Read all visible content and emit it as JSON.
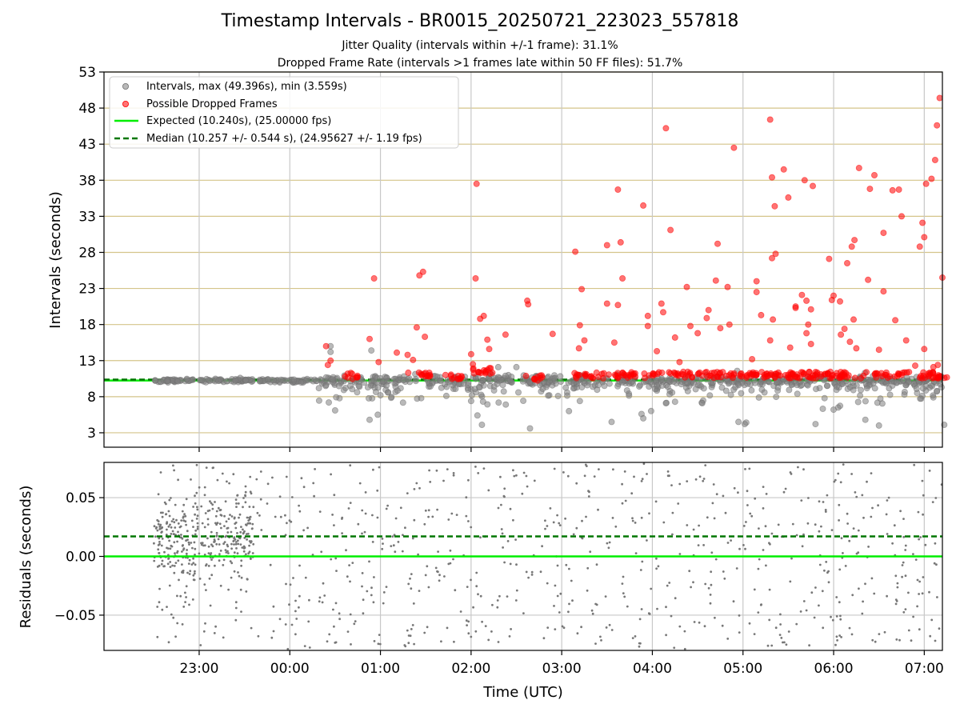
{
  "header": {
    "title": "Timestamp Intervals - BR0015_20250721_223023_557818",
    "subtitle1": "Jitter Quality (intervals within +/-1 frame): 31.1%",
    "subtitle2": "Dropped Frame Rate (intervals >1 frames late within 50 FF files): 51.7%"
  },
  "colors": {
    "interval_points": "#808080",
    "dropped_points": "#ff0000",
    "expected_line": "#00ee00",
    "median_line": "#007700",
    "hgrid": "#d4c48a",
    "vgrid": "#c8c8c8"
  },
  "chart_data": [
    {
      "type": "scatter",
      "title": "",
      "ylabel": "Intervals (seconds)",
      "xlabel": "",
      "x_unit": "hours since 23:00 UTC",
      "xlim": [
        -1.05,
        8.2
      ],
      "ylim": [
        1,
        53
      ],
      "yticks": [
        3,
        8,
        13,
        18,
        23,
        28,
        33,
        38,
        43,
        48,
        53
      ],
      "xticks": [
        0,
        1,
        2,
        3,
        4,
        5,
        6,
        7,
        8
      ],
      "xtick_labels": [
        "23:00",
        "00:00",
        "01:00",
        "02:00",
        "03:00",
        "04:00",
        "05:00",
        "06:00",
        "07:00"
      ],
      "grid": "both",
      "legend_position": "upper-left",
      "legend": [
        "Intervals, max (49.396s), min (3.559s)",
        "Possible Dropped Frames",
        "Expected (10.240s), (25.00000 fps)",
        "Median (10.257 +/- 0.544 s), (24.95627 +/- 1.19 fps)"
      ],
      "expected_value": 10.24,
      "median_value": 10.257,
      "intervals_baseline": 10.24,
      "series": [
        {
          "name": "Intervals, max (49.396s), min (3.559s)",
          "x_range": [
            -0.5,
            8.3
          ],
          "typical_value": 10.24,
          "outliers": [
            {
              "x": 1.45,
              "y": 15.0
            },
            {
              "x": 1.45,
              "y": 14.2
            },
            {
              "x": 1.5,
              "y": 6.1
            },
            {
              "x": 1.43,
              "y": 7.2
            },
            {
              "x": 1.9,
              "y": 14.4
            },
            {
              "x": 1.88,
              "y": 4.8
            },
            {
              "x": 1.97,
              "y": 5.5
            },
            {
              "x": 2.0,
              "y": 8.2
            },
            {
              "x": 2.45,
              "y": 7.8
            },
            {
              "x": 3.0,
              "y": 7.4
            },
            {
              "x": 3.12,
              "y": 4.1
            },
            {
              "x": 3.07,
              "y": 5.4
            },
            {
              "x": 3.3,
              "y": 12.1
            },
            {
              "x": 3.5,
              "y": 12.1
            },
            {
              "x": 3.65,
              "y": 3.6
            },
            {
              "x": 4.08,
              "y": 6.0
            },
            {
              "x": 4.2,
              "y": 7.4
            },
            {
              "x": 4.55,
              "y": 4.5
            },
            {
              "x": 4.88,
              "y": 5.6
            },
            {
              "x": 4.9,
              "y": 5.0
            },
            {
              "x": 5.15,
              "y": 7.1
            },
            {
              "x": 5.25,
              "y": 7.3
            },
            {
              "x": 5.55,
              "y": 7.1
            },
            {
              "x": 5.95,
              "y": 4.5
            },
            {
              "x": 6.02,
              "y": 4.2
            },
            {
              "x": 6.6,
              "y": 8.4
            },
            {
              "x": 6.8,
              "y": 4.2
            },
            {
              "x": 6.9,
              "y": 7.8
            },
            {
              "x": 7.0,
              "y": 6.2
            },
            {
              "x": 7.05,
              "y": 6.5
            },
            {
              "x": 7.35,
              "y": 4.8
            },
            {
              "x": 7.5,
              "y": 4.0
            },
            {
              "x": 8.1,
              "y": 7.9
            },
            {
              "x": 8.22,
              "y": 4.1
            }
          ]
        },
        {
          "name": "Possible Dropped Frames",
          "clusters": [
            {
              "x_start": 1.6,
              "x_end": 1.75,
              "y": 10.9,
              "count": 10
            },
            {
              "x_start": 2.3,
              "x_end": 2.55,
              "y": 11.0,
              "count": 14
            },
            {
              "x_start": 2.7,
              "x_end": 2.9,
              "y": 10.8,
              "count": 12
            },
            {
              "x_start": 3.0,
              "x_end": 3.25,
              "y": 11.6,
              "count": 16
            },
            {
              "x_start": 3.6,
              "x_end": 3.8,
              "y": 10.6,
              "count": 10
            },
            {
              "x_start": 4.12,
              "x_end": 4.7,
              "y": 10.9,
              "count": 30
            },
            {
              "x_start": 4.68,
              "x_end": 8.25,
              "y": 11.0,
              "count": 210
            }
          ],
          "points": [
            {
              "x": 1.4,
              "y": 15.0
            },
            {
              "x": 1.42,
              "y": 12.4
            },
            {
              "x": 1.45,
              "y": 13.0
            },
            {
              "x": 1.88,
              "y": 16.0
            },
            {
              "x": 1.93,
              "y": 24.4
            },
            {
              "x": 1.98,
              "y": 12.8
            },
            {
              "x": 2.18,
              "y": 14.1
            },
            {
              "x": 2.3,
              "y": 13.8
            },
            {
              "x": 2.4,
              "y": 17.6
            },
            {
              "x": 2.43,
              "y": 24.8
            },
            {
              "x": 2.47,
              "y": 25.3
            },
            {
              "x": 2.49,
              "y": 16.3
            },
            {
              "x": 2.36,
              "y": 13.1
            },
            {
              "x": 3.0,
              "y": 13.9
            },
            {
              "x": 3.02,
              "y": 12.5
            },
            {
              "x": 3.06,
              "y": 37.5
            },
            {
              "x": 3.05,
              "y": 24.4
            },
            {
              "x": 3.1,
              "y": 18.8
            },
            {
              "x": 3.14,
              "y": 19.2
            },
            {
              "x": 3.18,
              "y": 15.9
            },
            {
              "x": 3.2,
              "y": 14.6
            },
            {
              "x": 3.38,
              "y": 16.6
            },
            {
              "x": 3.62,
              "y": 21.3
            },
            {
              "x": 3.63,
              "y": 20.8
            },
            {
              "x": 3.9,
              "y": 16.7
            },
            {
              "x": 4.15,
              "y": 28.1
            },
            {
              "x": 4.22,
              "y": 22.9
            },
            {
              "x": 4.25,
              "y": 15.8
            },
            {
              "x": 4.19,
              "y": 14.7
            },
            {
              "x": 4.2,
              "y": 17.9
            },
            {
              "x": 4.5,
              "y": 29.0
            },
            {
              "x": 4.5,
              "y": 20.9
            },
            {
              "x": 4.62,
              "y": 36.7
            },
            {
              "x": 4.65,
              "y": 29.4
            },
            {
              "x": 4.67,
              "y": 24.4
            },
            {
              "x": 4.62,
              "y": 20.7
            },
            {
              "x": 4.58,
              "y": 15.5
            },
            {
              "x": 4.9,
              "y": 34.5
            },
            {
              "x": 4.95,
              "y": 19.2
            },
            {
              "x": 4.95,
              "y": 17.8
            },
            {
              "x": 5.05,
              "y": 14.3
            },
            {
              "x": 5.1,
              "y": 20.9
            },
            {
              "x": 5.12,
              "y": 19.7
            },
            {
              "x": 5.15,
              "y": 45.2
            },
            {
              "x": 5.2,
              "y": 31.1
            },
            {
              "x": 5.25,
              "y": 16.2
            },
            {
              "x": 5.3,
              "y": 12.8
            },
            {
              "x": 5.38,
              "y": 23.2
            },
            {
              "x": 5.42,
              "y": 17.8
            },
            {
              "x": 5.5,
              "y": 16.8
            },
            {
              "x": 5.6,
              "y": 18.9
            },
            {
              "x": 5.62,
              "y": 20.0
            },
            {
              "x": 5.7,
              "y": 24.1
            },
            {
              "x": 5.72,
              "y": 29.2
            },
            {
              "x": 5.75,
              "y": 17.5
            },
            {
              "x": 5.83,
              "y": 23.2
            },
            {
              "x": 5.9,
              "y": 42.5
            },
            {
              "x": 5.85,
              "y": 18.0
            },
            {
              "x": 6.1,
              "y": 13.2
            },
            {
              "x": 6.15,
              "y": 24.0
            },
            {
              "x": 6.15,
              "y": 22.5
            },
            {
              "x": 6.2,
              "y": 19.3
            },
            {
              "x": 6.3,
              "y": 46.4
            },
            {
              "x": 6.32,
              "y": 38.4
            },
            {
              "x": 6.35,
              "y": 34.4
            },
            {
              "x": 6.32,
              "y": 27.2
            },
            {
              "x": 6.36,
              "y": 27.8
            },
            {
              "x": 6.33,
              "y": 18.7
            },
            {
              "x": 6.3,
              "y": 15.8
            },
            {
              "x": 6.45,
              "y": 39.5
            },
            {
              "x": 6.5,
              "y": 35.6
            },
            {
              "x": 6.52,
              "y": 14.8
            },
            {
              "x": 6.58,
              "y": 20.5
            },
            {
              "x": 6.58,
              "y": 20.3
            },
            {
              "x": 6.68,
              "y": 38.0
            },
            {
              "x": 6.7,
              "y": 21.3
            },
            {
              "x": 6.72,
              "y": 18.0
            },
            {
              "x": 6.77,
              "y": 37.2
            },
            {
              "x": 6.75,
              "y": 20.1
            },
            {
              "x": 6.65,
              "y": 22.1
            },
            {
              "x": 6.7,
              "y": 16.8
            },
            {
              "x": 6.75,
              "y": 15.3
            },
            {
              "x": 6.95,
              "y": 27.1
            },
            {
              "x": 7.0,
              "y": 22.0
            },
            {
              "x": 6.98,
              "y": 21.4
            },
            {
              "x": 7.08,
              "y": 16.6
            },
            {
              "x": 7.07,
              "y": 21.2
            },
            {
              "x": 7.12,
              "y": 17.4
            },
            {
              "x": 7.15,
              "y": 26.5
            },
            {
              "x": 7.2,
              "y": 28.8
            },
            {
              "x": 7.23,
              "y": 29.7
            },
            {
              "x": 7.22,
              "y": 18.7
            },
            {
              "x": 7.18,
              "y": 15.6
            },
            {
              "x": 7.25,
              "y": 14.7
            },
            {
              "x": 7.28,
              "y": 39.7
            },
            {
              "x": 7.38,
              "y": 24.2
            },
            {
              "x": 7.4,
              "y": 36.8
            },
            {
              "x": 7.45,
              "y": 38.7
            },
            {
              "x": 7.55,
              "y": 30.7
            },
            {
              "x": 7.55,
              "y": 22.6
            },
            {
              "x": 7.5,
              "y": 14.5
            },
            {
              "x": 7.65,
              "y": 36.6
            },
            {
              "x": 7.68,
              "y": 18.6
            },
            {
              "x": 7.72,
              "y": 36.7
            },
            {
              "x": 7.75,
              "y": 33.0
            },
            {
              "x": 7.8,
              "y": 15.8
            },
            {
              "x": 7.95,
              "y": 28.8
            },
            {
              "x": 7.98,
              "y": 32.1
            },
            {
              "x": 8.0,
              "y": 30.1
            },
            {
              "x": 8.02,
              "y": 37.5
            },
            {
              "x": 8.08,
              "y": 38.2
            },
            {
              "x": 8.12,
              "y": 40.8
            },
            {
              "x": 8.14,
              "y": 45.6
            },
            {
              "x": 8.17,
              "y": 49.4
            },
            {
              "x": 8.2,
              "y": 24.5
            },
            {
              "x": 8.15,
              "y": 12.4
            },
            {
              "x": 8.1,
              "y": 12.1
            },
            {
              "x": 8.0,
              "y": 14.6
            },
            {
              "x": 7.9,
              "y": 12.3
            }
          ]
        },
        {
          "name": "Expected (10.240s), (25.00000 fps)",
          "y": 10.24
        },
        {
          "name": "Median (10.257 +/- 0.544 s), (24.95627 +/- 1.19 fps)",
          "y": 10.257
        }
      ]
    },
    {
      "type": "scatter",
      "title": "",
      "ylabel": "Residuals (seconds)",
      "xlabel": "Time (UTC)",
      "ylim": [
        -0.08,
        0.08
      ],
      "yticks": [
        -0.05,
        0.0,
        0.05
      ],
      "ytick_labels": [
        "−0.05",
        "0.00",
        "0.05"
      ],
      "xticks": [
        0,
        1,
        2,
        3,
        4,
        5,
        6,
        7,
        8
      ],
      "xtick_labels": [
        "23:00",
        "00:00",
        "01:00",
        "02:00",
        "03:00",
        "04:00",
        "05:00",
        "06:00",
        "07:00"
      ],
      "grid": "both",
      "expected_residual": 0.0,
      "median_residual": 0.017,
      "series": [
        {
          "name": "Residuals",
          "x_range": [
            -0.5,
            8.3
          ],
          "dense_region": [
            -0.5,
            0.6
          ],
          "dense_center": 0.015,
          "dense_spread": 0.018,
          "spread": 0.05,
          "points_shown": 1100
        }
      ]
    }
  ]
}
